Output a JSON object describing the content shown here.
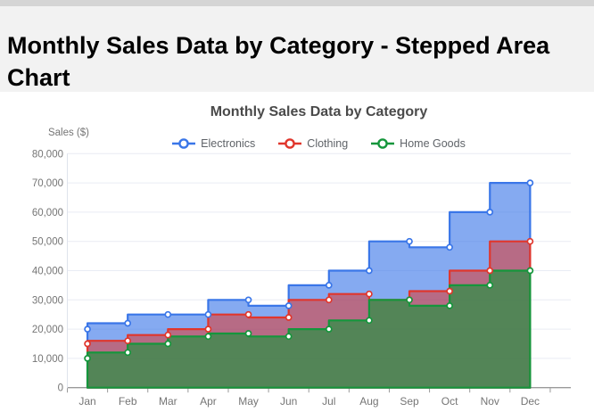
{
  "page": {
    "heading": "Monthly Sales Data by Category - Stepped Area Chart"
  },
  "chart_data": {
    "type": "area",
    "variant": "stepped",
    "title": "Monthly Sales Data by Category",
    "ylabel": "Sales ($)",
    "xlabel": "",
    "ylim": [
      0,
      80000
    ],
    "ytick_step": 10000,
    "grid": true,
    "legend_position": "top",
    "categories": [
      "Jan",
      "Feb",
      "Mar",
      "Apr",
      "May",
      "Jun",
      "Jul",
      "Aug",
      "Sep",
      "Oct",
      "Nov",
      "Dec"
    ],
    "series": [
      {
        "name": "Electronics",
        "color": "#3a76e8",
        "values": [
          20000,
          22000,
          25000,
          25000,
          30000,
          28000,
          35000,
          40000,
          50000,
          48000,
          60000,
          70000
        ]
      },
      {
        "name": "Clothing",
        "color": "#e0362c",
        "values": [
          15000,
          16000,
          18000,
          20000,
          25000,
          24000,
          30000,
          32000,
          30000,
          33000,
          40000,
          50000
        ]
      },
      {
        "name": "Home Goods",
        "color": "#15963c",
        "values": [
          10000,
          12000,
          15000,
          17500,
          18500,
          17500,
          20000,
          23000,
          30000,
          28000,
          35000,
          40000
        ]
      }
    ],
    "colors": {
      "grid": "#e9ecf4",
      "axis_line": "#9a9a9a",
      "left_axis_line": "#dfe3ec",
      "tick_text": "#757575",
      "title_text": "#4a4a4a",
      "legend_text": "#5f6368"
    }
  }
}
